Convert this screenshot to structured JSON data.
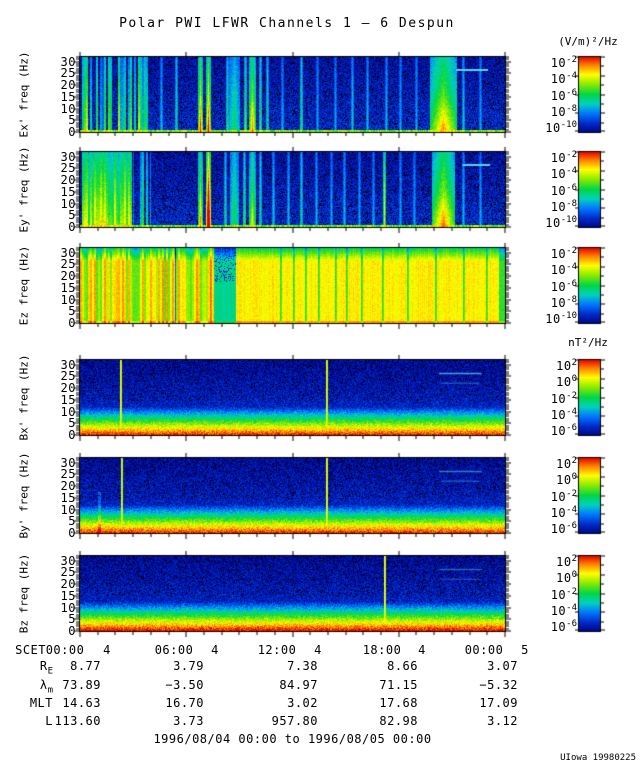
{
  "title": "Polar PWI LFWR Channels 1 — 6 Despun",
  "credit": "UIowa 19980225",
  "chart_data": {
    "type": "heatmap",
    "subtype": "multi-panel time-frequency spectrogram",
    "title": "Polar PWI LFWR Channels 1 — 6 Despun",
    "footer": "1996/08/04 00:00 to 1996/08/05 00:00",
    "x_axis": {
      "name": "SCET",
      "start": "1996/08/04 00:00",
      "end": "1996/08/05 00:00",
      "hours_span": 24,
      "tick_labels": [
        "00:00",
        "06:00",
        "12:00",
        "18:00",
        "00:00"
      ],
      "day_labels": [
        "4",
        "4",
        "4",
        "4",
        "5"
      ]
    },
    "y_axis": {
      "unit": "Hz",
      "range": [
        0,
        32
      ],
      "tick_labels": [
        "30",
        "25",
        "20",
        "15",
        "10",
        "5",
        "0"
      ]
    },
    "colorbar_base": "10",
    "colorbars": [
      {
        "unit": "(V/m)²/Hz",
        "exponents": [
          "-2",
          "-4",
          "-6",
          "-8",
          "-10"
        ],
        "scale": "log",
        "gradient": [
          "#e10000",
          "#ff8200",
          "#ffff00",
          "#00d746",
          "#00d2be",
          "#0078ff",
          "#0028c8",
          "#000a8c"
        ]
      },
      {
        "unit": "nT²/Hz",
        "exponents": [
          "2",
          "0",
          "-2",
          "-4",
          "-6"
        ],
        "scale": "log",
        "gradient": [
          "#e10000",
          "#ff8200",
          "#ffff00",
          "#00d746",
          "#00d2be",
          "#0078ff",
          "#0028c8",
          "#000a8c"
        ]
      }
    ],
    "panels": [
      {
        "id": "ex",
        "label": "Ex' freq (Hz)",
        "cb": 0,
        "style": "e",
        "seed": 11,
        "features": {
          "regions": [
            {
              "x0": 0.004,
              "x1": 0.175,
              "density": 0.72,
              "strength": 0.8
            }
          ],
          "streaks": [
            [
              0.19,
              0.002,
              0.35,
              0
            ],
            [
              0.225,
              0.003,
              0.5,
              0
            ],
            [
              0.283,
              0.004,
              0.95,
              1
            ],
            [
              0.3,
              0.004,
              1,
              1
            ],
            [
              0.345,
              0.003,
              0.55,
              0
            ],
            [
              0.363,
              0.012,
              0.5,
              0
            ],
            [
              0.388,
              0.003,
              0.65,
              0
            ],
            [
              0.404,
              0.008,
              0.85,
              1
            ],
            [
              0.423,
              0.003,
              0.6,
              0
            ],
            [
              0.44,
              0.003,
              0.5,
              0
            ],
            [
              0.475,
              0.002,
              0.3,
              0
            ],
            [
              0.52,
              0.003,
              0.55,
              0
            ],
            [
              0.557,
              0.002,
              0.3,
              0
            ],
            [
              0.6,
              0.002,
              0.3,
              0
            ],
            [
              0.64,
              0.003,
              0.4,
              0
            ],
            [
              0.676,
              0.002,
              0.35,
              0
            ],
            [
              0.72,
              0.002,
              0.35,
              0
            ],
            [
              0.754,
              0.002,
              0.3,
              0
            ],
            [
              0.79,
              0.002,
              0.3,
              0
            ],
            [
              0.853,
              0.03,
              0.8,
              1
            ],
            [
              0.9,
              0.003,
              0.4,
              0
            ],
            [
              0.94,
              0.003,
              0.3,
              0
            ]
          ],
          "hline": [
            0.885,
            0.96,
            0.16
          ]
        }
      },
      {
        "id": "ey",
        "label": "Ey' freq (Hz)",
        "cb": 0,
        "style": "e",
        "seed": 22,
        "features": {
          "regions": [
            {
              "x0": 0.004,
              "x1": 0.122,
              "density": 1,
              "strength": 0.95,
              "solid": true
            },
            {
              "x0": 0.125,
              "x1": 0.168,
              "density": 0.55,
              "strength": 0.6
            }
          ],
          "streaks": [
            [
              0.283,
              0.004,
              0.85,
              1
            ],
            [
              0.301,
              0.004,
              1,
              2
            ],
            [
              0.34,
              0.003,
              0.5,
              0
            ],
            [
              0.362,
              0.01,
              0.55,
              0
            ],
            [
              0.386,
              0.003,
              0.6,
              0
            ],
            [
              0.405,
              0.007,
              0.7,
              1
            ],
            [
              0.424,
              0.003,
              0.5,
              0
            ],
            [
              0.455,
              0.002,
              0.4,
              0
            ],
            [
              0.49,
              0.002,
              0.35,
              0
            ],
            [
              0.52,
              0.003,
              0.5,
              0
            ],
            [
              0.556,
              0.002,
              0.35,
              0
            ],
            [
              0.59,
              0.002,
              0.3,
              0
            ],
            [
              0.62,
              0.002,
              0.35,
              0
            ],
            [
              0.657,
              0.002,
              0.3,
              0
            ],
            [
              0.69,
              0.002,
              0.3,
              0
            ],
            [
              0.716,
              0.003,
              0.9,
              0
            ],
            [
              0.752,
              0.002,
              0.3,
              0
            ],
            [
              0.785,
              0.002,
              0.3,
              0
            ],
            [
              0.853,
              0.027,
              0.85,
              1
            ],
            [
              0.9,
              0.003,
              0.35,
              0
            ],
            [
              0.942,
              0.002,
              0.3,
              0
            ]
          ],
          "hline": [
            0.9,
            0.965,
            0.16
          ]
        }
      },
      {
        "id": "ez",
        "label": "Ez freq (Hz)",
        "cb": 0,
        "style": "ez",
        "seed": 33,
        "features": {
          "stripes": [
            0,
            0.3
          ],
          "cyan": [
            0.315,
            0.366
          ],
          "blue_cols": [
            0.224
          ],
          "orange_cols": [
            0.306
          ],
          "green_cols": [
            0.47,
            0.5,
            0.53,
            0.56,
            0.6,
            0.625,
            0.66,
            0.71,
            0.77,
            0.835,
            0.9,
            0.955
          ],
          "right_green": [
            0.985,
            1
          ],
          "top_band": 0.17
        }
      },
      {
        "id": "bx",
        "label": "Bx' freq (Hz)",
        "cb": 1,
        "style": "b",
        "seed": 44,
        "features": {
          "spikes": [
            [
              0.095,
              0.85
            ],
            [
              0.578,
              0.8
            ]
          ],
          "hlines": [
            [
              0.845,
              0.945,
              0.17,
              0.95
            ],
            [
              0.85,
              0.94,
              0.3,
              0.4
            ]
          ]
        }
      },
      {
        "id": "by",
        "label": "By' freq (Hz)",
        "cb": 1,
        "style": "b",
        "seed": 55,
        "features": {
          "smudges": [
            [
              0.045,
              0.12
            ]
          ],
          "spikes": [
            [
              0.096,
              0.7
            ],
            [
              0.578,
              0.9
            ]
          ],
          "hlines": [
            [
              0.845,
              0.945,
              0.17,
              0.7
            ],
            [
              0.85,
              0.94,
              0.3,
              0.4
            ]
          ]
        }
      },
      {
        "id": "bz",
        "label": "Bz freq (Hz)",
        "cb": 1,
        "style": "b",
        "seed": 66,
        "features": {
          "lift": 0.03,
          "spikes": [
            [
              0.715,
              0.9
            ]
          ],
          "hlines": [
            [
              0.845,
              0.945,
              0.17,
              0.55
            ],
            [
              0.85,
              0.94,
              0.3,
              0.35
            ]
          ]
        }
      }
    ],
    "ephemeris": {
      "rows": [
        {
          "label": "R",
          "sub": "E",
          "values": [
            "8.77",
            "3.79",
            "7.38",
            "8.66",
            "3.07"
          ]
        },
        {
          "label": "λ",
          "sub": "m",
          "values": [
            "73.89",
            "−3.50",
            "84.97",
            "71.15",
            "−5.32"
          ]
        },
        {
          "label": "MLT",
          "sub": "",
          "values": [
            "14.63",
            "16.70",
            "3.02",
            "17.68",
            "17.09"
          ]
        },
        {
          "label": "L",
          "sub": "",
          "values": [
            "113.60",
            "3.73",
            "957.80",
            "82.98",
            "3.12"
          ]
        }
      ]
    }
  }
}
